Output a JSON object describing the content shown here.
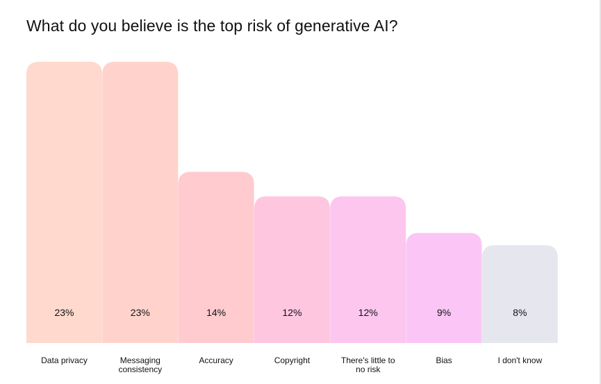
{
  "chart_data": {
    "type": "bar",
    "title": "What do you believe is the top risk of generative AI?",
    "xlabel": "",
    "ylabel": "",
    "ylim": [
      0,
      23
    ],
    "grid": false,
    "legend": "none",
    "categories": [
      [
        "Data privacy"
      ],
      [
        "Messaging",
        "consistency"
      ],
      [
        "Accuracy"
      ],
      [
        "Copyright"
      ],
      [
        "There's little to",
        "no risk"
      ],
      [
        "Bias"
      ],
      [
        "I don't know"
      ]
    ],
    "values": [
      23,
      23,
      14,
      12,
      12,
      9,
      8
    ],
    "value_labels": [
      "23%",
      "23%",
      "14%",
      "12%",
      "12%",
      "9%",
      "8%"
    ],
    "colors": [
      "#ffd9cd",
      "#ffd3cb",
      "#ffcbcf",
      "#ffc6e0",
      "#fdc6ee",
      "#fbc6f6",
      "#e6e7ee"
    ]
  }
}
